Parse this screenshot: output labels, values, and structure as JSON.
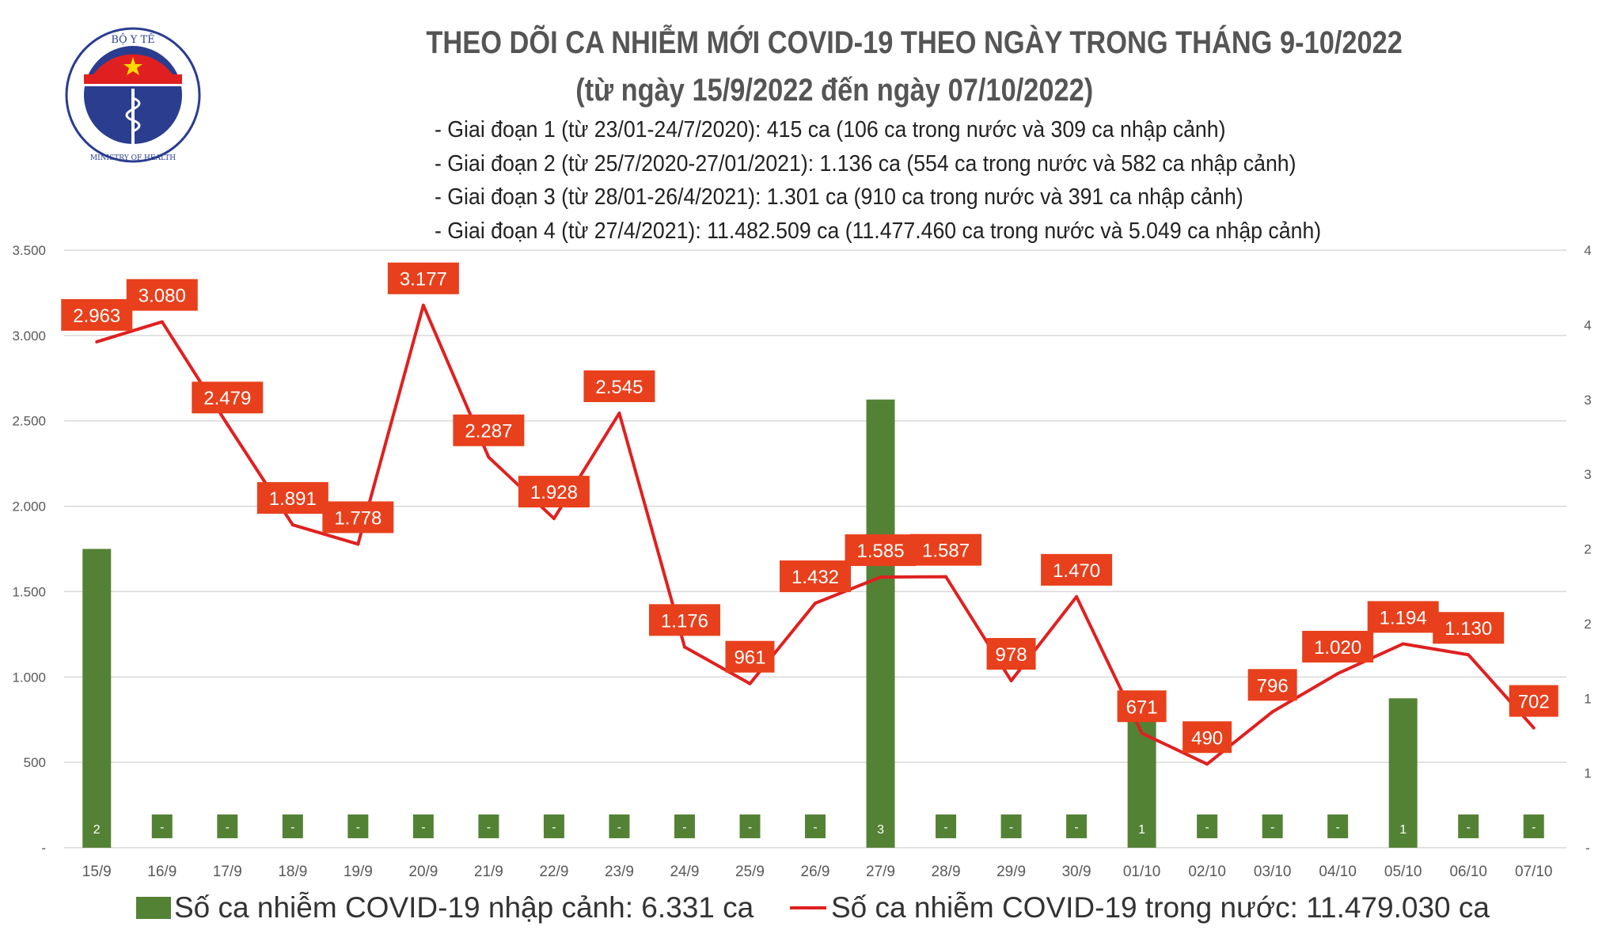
{
  "header": {
    "title": "THEO DÕI CA NHIỄM MỚI COVID-19 THEO NGÀY TRONG THÁNG 9-10/2022",
    "subtitle": "(từ ngày 15/9/2022 đến ngày 07/10/2022)",
    "bullets": [
      "- Giai đoạn 1 (từ 23/01-24/7/2020): 415 ca (106 ca trong nước và 309 ca nhập cảnh)",
      "- Giai đoạn 2 (từ 25/7/2020-27/01/2021): 1.136 ca (554 ca trong nước và 582 ca nhập cảnh)",
      "- Giai đoạn 3 (từ 28/01-26/4/2021): 1.301 ca (910 ca trong nước và 391 ca nhập cảnh)",
      "- Giai đoạn 4 (từ 27/4/2021): 11.482.509 ca (11.477.460 ca trong nước và 5.049 ca nhập cảnh)"
    ]
  },
  "logo": {
    "text_top": "BỘ Y TẾ",
    "text_bottom": "MINISTRY OF HEALTH"
  },
  "chart_data": {
    "type": "bar+line",
    "categories": [
      "15/9",
      "16/9",
      "17/9",
      "18/9",
      "19/9",
      "20/9",
      "21/9",
      "22/9",
      "23/9",
      "24/9",
      "25/9",
      "26/9",
      "27/9",
      "28/9",
      "29/9",
      "30/9",
      "01/10",
      "02/10",
      "03/10",
      "04/10",
      "05/10",
      "06/10",
      "07/10"
    ],
    "series": [
      {
        "name": "Số ca nhiễm COVID-19 nhập cảnh: 6.331 ca",
        "type": "bar",
        "axis": "right",
        "color": "#548235",
        "values": [
          2,
          0,
          0,
          0,
          0,
          0,
          0,
          0,
          0,
          0,
          0,
          0,
          3,
          0,
          0,
          0,
          1,
          0,
          0,
          0,
          1,
          0,
          0
        ]
      },
      {
        "name": "Số ca nhiễm COVID-19 trong nước: 11.479.030 ca",
        "type": "line",
        "axis": "left",
        "color": "#e02020",
        "values": [
          2963,
          3080,
          2479,
          1891,
          1778,
          3177,
          2287,
          1928,
          2545,
          1176,
          961,
          1432,
          1585,
          1587,
          978,
          1470,
          671,
          490,
          796,
          1020,
          1194,
          1130,
          702
        ]
      }
    ],
    "left_axis": {
      "ylim": [
        0,
        3500
      ],
      "ticks": [
        "-",
        "500",
        "1.000",
        "1.500",
        "2.000",
        "2.500",
        "3.000",
        "3.500"
      ]
    },
    "right_axis": {
      "ylim": [
        0,
        4
      ],
      "ticks": [
        "-",
        "1",
        "1",
        "2",
        "2",
        "3",
        "3",
        "4",
        "4"
      ]
    },
    "grid": true,
    "legend": "bottom",
    "label_color": "#e8401c"
  }
}
